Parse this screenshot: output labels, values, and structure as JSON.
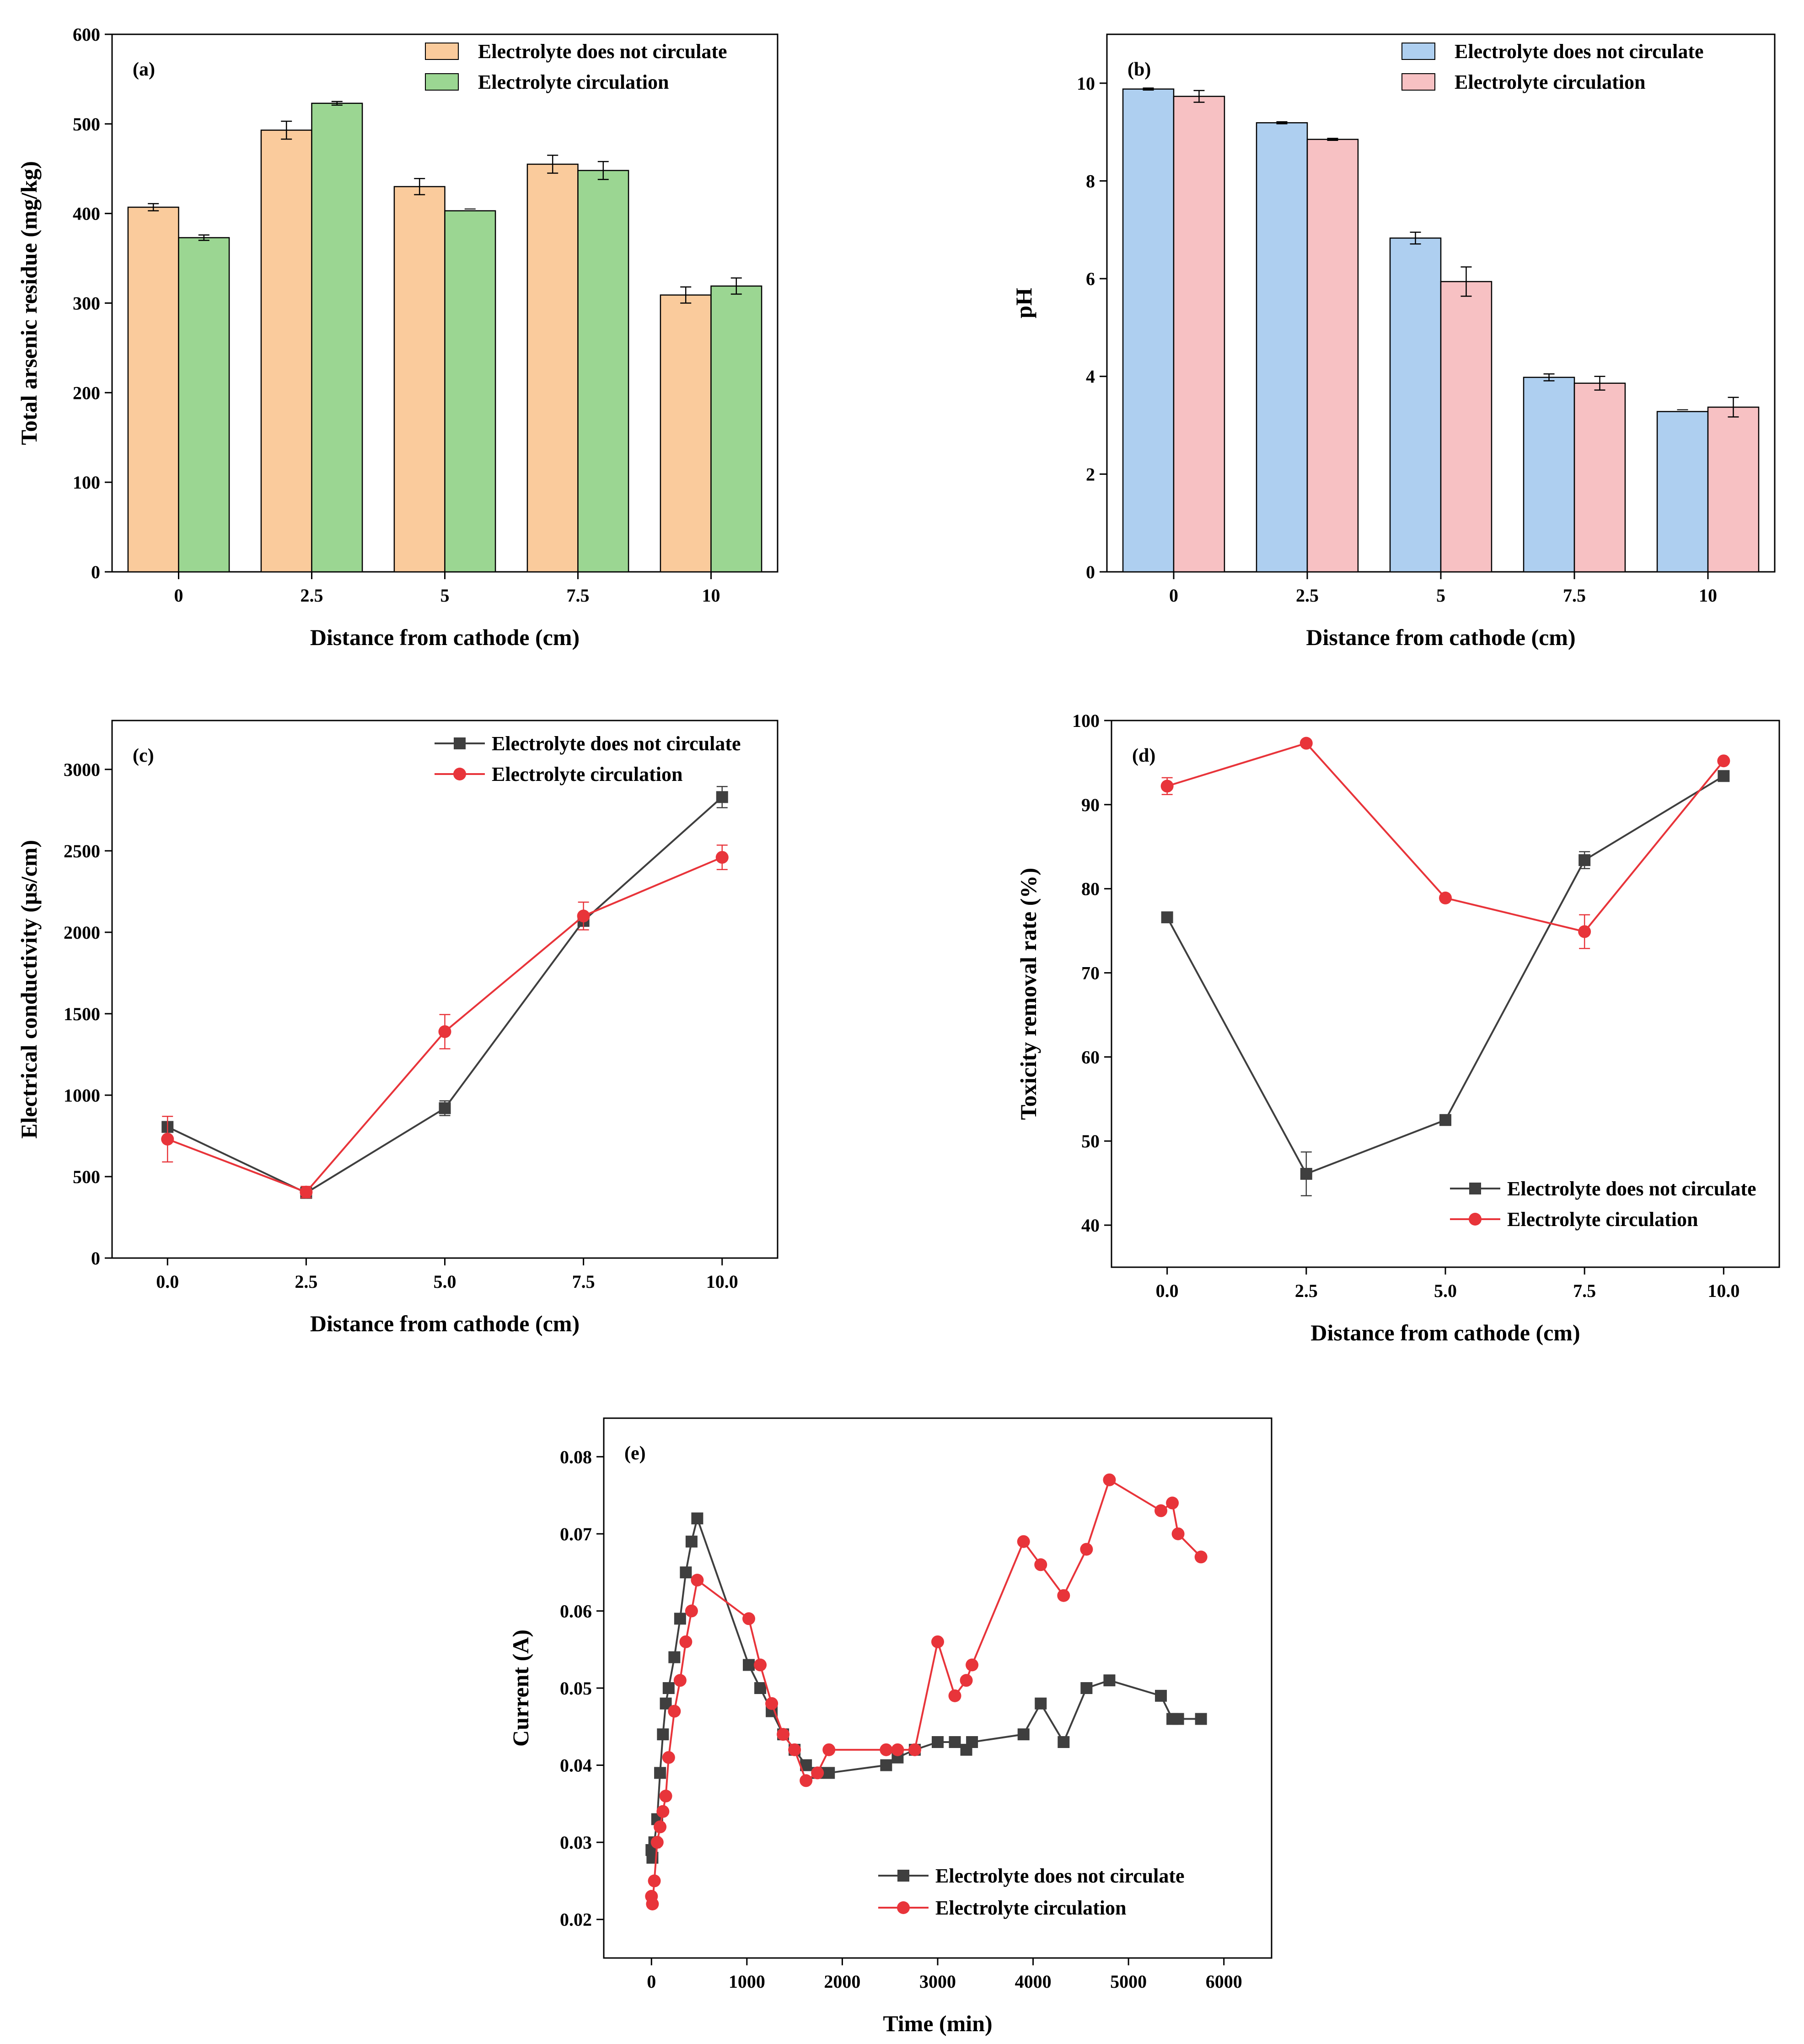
{
  "figure": "Electrokinetic remediation results",
  "chart_data": [
    {
      "id": "a",
      "type": "bar",
      "panel_label": "(a)",
      "categories": [
        "0",
        "2.5",
        "5",
        "7.5",
        "10"
      ],
      "xlabel": "Distance from cathode (cm)",
      "ylabel": "Total arsenic residue (mg/kg)",
      "ylim": [
        0,
        600
      ],
      "yticks": [
        0,
        100,
        200,
        300,
        400,
        500,
        600
      ],
      "legend_position": "top-right",
      "series": [
        {
          "name": "Electrolyte does not circulate",
          "color": "#FACB9C",
          "values": [
            407,
            493,
            430,
            455,
            309
          ],
          "errors": [
            4,
            10,
            9,
            10,
            9
          ]
        },
        {
          "name": "Electrolyte circulation",
          "color": "#9BD692",
          "values": [
            373,
            523,
            403,
            448,
            319
          ],
          "errors": [
            3,
            2,
            0,
            10,
            9
          ]
        }
      ]
    },
    {
      "id": "b",
      "type": "bar",
      "panel_label": "(b)",
      "categories": [
        "0",
        "2.5",
        "5",
        "7.5",
        "10"
      ],
      "xlabel": "Distance from cathode (cm)",
      "ylabel": "pH",
      "ylim": [
        0,
        11
      ],
      "yticks": [
        0,
        2,
        4,
        6,
        8,
        10
      ],
      "legend_position": "top-right",
      "series": [
        {
          "name": "Electrolyte does not circulate",
          "color": "#AECFF0",
          "values": [
            9.88,
            9.19,
            6.83,
            3.98,
            3.28
          ],
          "errors": [
            0.02,
            0.02,
            0.12,
            0.07,
            0.0
          ]
        },
        {
          "name": "Electrolyte circulation",
          "color": "#F7C1C3",
          "values": [
            9.73,
            8.85,
            5.94,
            3.86,
            3.37
          ],
          "errors": [
            0.12,
            0.02,
            0.3,
            0.14,
            0.2
          ]
        }
      ]
    },
    {
      "id": "c",
      "type": "line",
      "panel_label": "(c)",
      "x": [
        0.0,
        2.5,
        5.0,
        7.5,
        10.0
      ],
      "xticks": [
        "0.0",
        "2.5",
        "5.0",
        "7.5",
        "10.0"
      ],
      "xlim": [
        -1,
        11
      ],
      "xlabel": "Distance from cathode (cm)",
      "ylabel": "Electrical conductivity (μs/cm)",
      "ylim": [
        0,
        3300
      ],
      "yticks": [
        0,
        500,
        1000,
        1500,
        2000,
        2500,
        3000
      ],
      "legend_position": "top-right",
      "series": [
        {
          "name": "Electrolyte does not circulate",
          "color": "#3F3F3F",
          "marker": "square",
          "values": [
            805,
            400,
            920,
            2070,
            2830
          ],
          "errors": [
            25,
            20,
            45,
            25,
            65
          ]
        },
        {
          "name": "Electrolyte circulation",
          "color": "#E8343A",
          "marker": "circle",
          "values": [
            730,
            405,
            1390,
            2100,
            2460
          ],
          "errors": [
            140,
            35,
            105,
            85,
            75
          ]
        }
      ]
    },
    {
      "id": "d",
      "type": "line",
      "panel_label": "(d)",
      "x": [
        0.0,
        2.5,
        5.0,
        7.5,
        10.0
      ],
      "xticks": [
        "0.0",
        "2.5",
        "5.0",
        "7.5",
        "10.0"
      ],
      "xlim": [
        -1,
        11
      ],
      "xlabel": "Distance from cathode (cm)",
      "ylabel": "Toxicity removal rate (%)",
      "ylim": [
        35,
        100
      ],
      "yticks": [
        40,
        50,
        60,
        70,
        80,
        90,
        100
      ],
      "legend_position": "bottom-right",
      "series": [
        {
          "name": "Electrolyte does not circulate",
          "color": "#3F3F3F",
          "marker": "square",
          "values": [
            76.6,
            46.1,
            52.5,
            83.4,
            93.4
          ],
          "errors": [
            0.3,
            2.6,
            0.3,
            1.0,
            0.3
          ]
        },
        {
          "name": "Electrolyte circulation",
          "color": "#E8343A",
          "marker": "circle",
          "values": [
            92.2,
            97.3,
            78.9,
            74.9,
            95.2
          ],
          "errors": [
            1.0,
            0.3,
            0.3,
            2.0,
            0.3
          ]
        }
      ]
    },
    {
      "id": "e",
      "type": "line",
      "panel_label": "(e)",
      "xlabel": "Time (min)",
      "ylabel": "Current (A)",
      "xlim": [
        -500,
        6500
      ],
      "xticks": [
        0,
        1000,
        2000,
        3000,
        4000,
        5000,
        6000
      ],
      "ylim": [
        0.015,
        0.085
      ],
      "yticks": [
        "0.02",
        "0.03",
        "0.04",
        "0.05",
        "0.06",
        "0.07",
        "0.08"
      ],
      "legend_position": "bottom-right",
      "series": [
        {
          "name": "Electrolyte does not circulate",
          "color": "#3F3F3F",
          "marker": "square",
          "x": [
            0,
            10,
            30,
            60,
            90,
            120,
            150,
            180,
            240,
            300,
            360,
            420,
            480,
            1020,
            1140,
            1260,
            1380,
            1500,
            1620,
            1740,
            1860,
            2460,
            2580,
            2760,
            3000,
            3180,
            3300,
            3360,
            3900,
            4080,
            4320,
            4560,
            4800,
            5340,
            5460,
            5520,
            5760
          ],
          "y": [
            0.029,
            0.028,
            0.03,
            0.033,
            0.039,
            0.044,
            0.048,
            0.05,
            0.054,
            0.059,
            0.065,
            0.069,
            0.072,
            0.053,
            0.05,
            0.047,
            0.044,
            0.042,
            0.04,
            0.039,
            0.039,
            0.04,
            0.041,
            0.042,
            0.043,
            0.043,
            0.042,
            0.043,
            0.044,
            0.048,
            0.043,
            0.05,
            0.051,
            0.049,
            0.046,
            0.046,
            0.046
          ]
        },
        {
          "name": "Electrolyte circulation",
          "color": "#E8343A",
          "marker": "circle",
          "x": [
            0,
            10,
            30,
            60,
            90,
            120,
            150,
            180,
            240,
            300,
            360,
            420,
            480,
            1020,
            1140,
            1260,
            1380,
            1500,
            1620,
            1740,
            1860,
            2460,
            2580,
            2760,
            3000,
            3180,
            3300,
            3360,
            3900,
            4080,
            4320,
            4560,
            4800,
            5340,
            5460,
            5520,
            5760
          ],
          "y": [
            0.023,
            0.022,
            0.025,
            0.03,
            0.032,
            0.034,
            0.036,
            0.041,
            0.047,
            0.051,
            0.056,
            0.06,
            0.064,
            0.059,
            0.053,
            0.048,
            0.044,
            0.042,
            0.038,
            0.039,
            0.042,
            0.042,
            0.042,
            0.042,
            0.056,
            0.049,
            0.051,
            0.053,
            0.069,
            0.066,
            0.062,
            0.068,
            0.077,
            0.073,
            0.074,
            0.07,
            0.067
          ]
        }
      ]
    }
  ]
}
